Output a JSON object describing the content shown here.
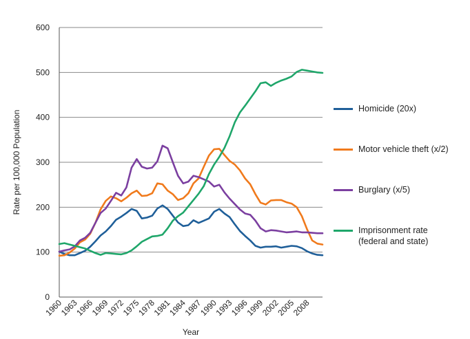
{
  "chart_data": {
    "type": "line",
    "title": "",
    "xlabel": "Year",
    "ylabel": "Rate per 100,000 Population",
    "xlim": [
      1960,
      2011
    ],
    "ylim": [
      0,
      600
    ],
    "yticks": [
      0,
      100,
      200,
      300,
      400,
      500,
      600
    ],
    "xticks": [
      "1960",
      "1963",
      "1966",
      "1969",
      "1972",
      "1975",
      "1978",
      "1981",
      "1984",
      "1987",
      "1990",
      "1993",
      "1996",
      "1999",
      "2002",
      "2005",
      "2008"
    ],
    "grid": "horizontal",
    "legend_position": "right",
    "x": [
      1960,
      1961,
      1962,
      1963,
      1964,
      1965,
      1966,
      1967,
      1968,
      1969,
      1970,
      1971,
      1972,
      1973,
      1974,
      1975,
      1976,
      1977,
      1978,
      1979,
      1980,
      1981,
      1982,
      1983,
      1984,
      1985,
      1986,
      1987,
      1988,
      1989,
      1990,
      1991,
      1992,
      1993,
      1994,
      1995,
      1996,
      1997,
      1998,
      1999,
      2000,
      2001,
      2002,
      2003,
      2004,
      2005,
      2006,
      2007,
      2008,
      2009,
      2010,
      2011
    ],
    "series": [
      {
        "name": "Homicide (20x)",
        "color": "#1f5f99",
        "values": [
          101,
          96,
          93,
          93,
          98,
          103,
          112,
          124,
          137,
          146,
          158,
          172,
          179,
          187,
          196,
          192,
          175,
          177,
          181,
          197,
          204,
          196,
          181,
          166,
          158,
          160,
          171,
          165,
          170,
          175,
          190,
          196,
          186,
          178,
          162,
          147,
          136,
          126,
          114,
          110,
          112,
          112,
          113,
          110,
          112,
          114,
          113,
          109,
          102,
          97,
          94,
          93
        ]
      },
      {
        "name": "Motor vehicle theft (x/2)",
        "color": "#f07a1c",
        "values": [
          92,
          93,
          99,
          108,
          122,
          128,
          141,
          165,
          195,
          214,
          224,
          220,
          213,
          221,
          231,
          237,
          225,
          226,
          231,
          253,
          251,
          237,
          229,
          216,
          220,
          231,
          253,
          264,
          290,
          315,
          329,
          330,
          316,
          303,
          295,
          282,
          264,
          251,
          229,
          210,
          206,
          215,
          216,
          216,
          211,
          208,
          200,
          180,
          151,
          126,
          119,
          117
        ]
      },
      {
        "name": "Burglary (x/5)",
        "color": "#7b3fa0",
        "values": [
          101,
          104,
          106,
          113,
          126,
          132,
          143,
          165,
          187,
          197,
          214,
          232,
          226,
          244,
          288,
          307,
          290,
          286,
          288,
          302,
          337,
          331,
          300,
          270,
          253,
          257,
          270,
          267,
          262,
          257,
          246,
          250,
          233,
          219,
          207,
          195,
          186,
          183,
          170,
          153,
          146,
          149,
          148,
          146,
          144,
          145,
          146,
          144,
          144,
          143,
          142,
          142
        ]
      },
      {
        "name": "Imprisonment rate\n(federal and state)",
        "color": "#1fa66a",
        "values": [
          118,
          120,
          117,
          114,
          111,
          108,
          103,
          98,
          94,
          98,
          97,
          96,
          95,
          98,
          104,
          113,
          123,
          129,
          135,
          136,
          139,
          153,
          170,
          180,
          188,
          202,
          216,
          230,
          247,
          274,
          295,
          312,
          332,
          358,
          389,
          411,
          426,
          442,
          458,
          476,
          478,
          470,
          477,
          482,
          486,
          491,
          501,
          506,
          504,
          502,
          500,
          499
        ]
      }
    ]
  }
}
